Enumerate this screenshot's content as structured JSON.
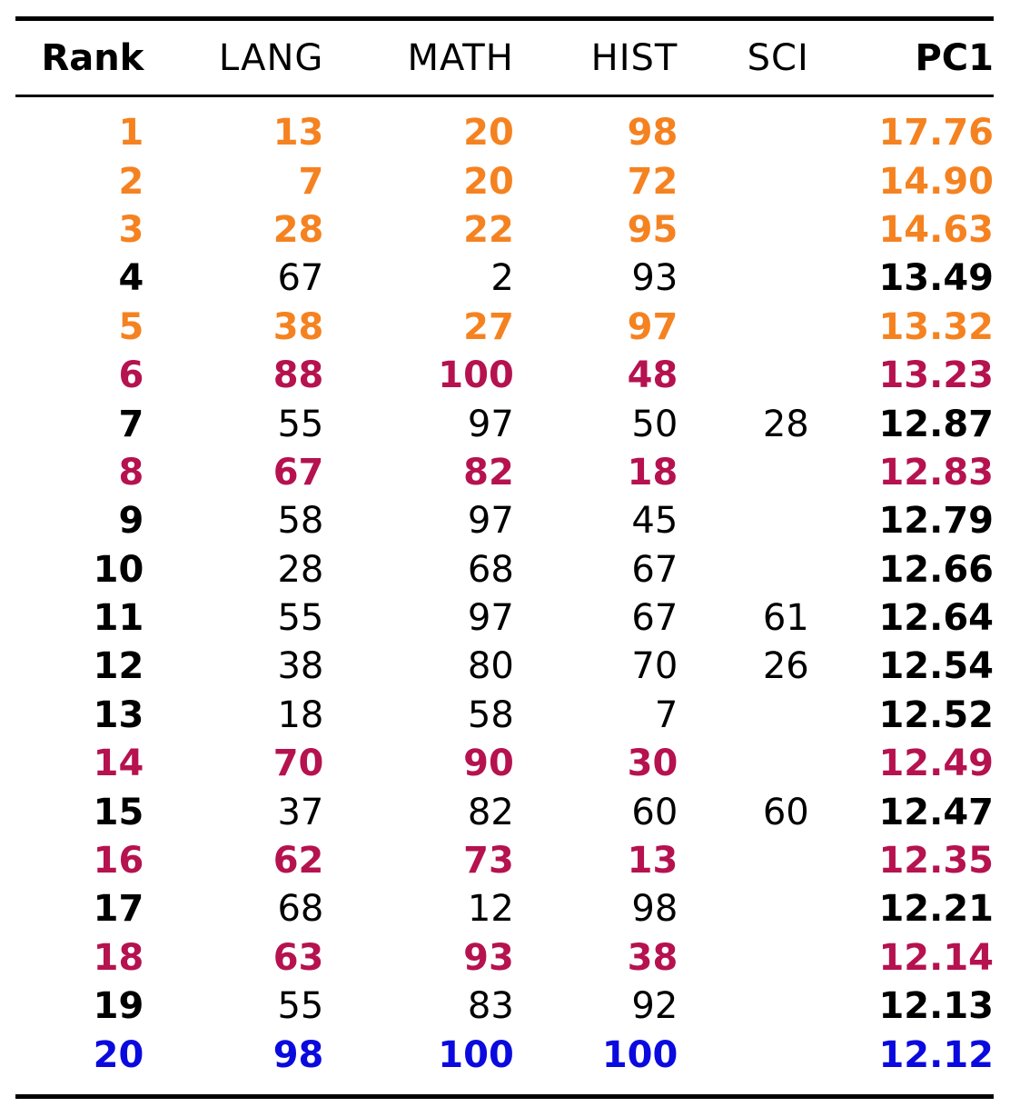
{
  "table": {
    "headers": {
      "rank": "Rank",
      "lang": "LANG",
      "math": "MATH",
      "hist": "HIST",
      "sci": "SCI",
      "pc1": "PC1"
    },
    "rows": [
      {
        "rank": "1",
        "lang": "13",
        "math": "20",
        "hist": "98",
        "sci": "",
        "pc1": "17.76",
        "highlight": "orange"
      },
      {
        "rank": "2",
        "lang": "7",
        "math": "20",
        "hist": "72",
        "sci": "",
        "pc1": "14.90",
        "highlight": "orange"
      },
      {
        "rank": "3",
        "lang": "28",
        "math": "22",
        "hist": "95",
        "sci": "",
        "pc1": "14.63",
        "highlight": "orange"
      },
      {
        "rank": "4",
        "lang": "67",
        "math": "2",
        "hist": "93",
        "sci": "",
        "pc1": "13.49",
        "highlight": "none"
      },
      {
        "rank": "5",
        "lang": "38",
        "math": "27",
        "hist": "97",
        "sci": "",
        "pc1": "13.32",
        "highlight": "orange"
      },
      {
        "rank": "6",
        "lang": "88",
        "math": "100",
        "hist": "48",
        "sci": "",
        "pc1": "13.23",
        "highlight": "red"
      },
      {
        "rank": "7",
        "lang": "55",
        "math": "97",
        "hist": "50",
        "sci": "28",
        "pc1": "12.87",
        "highlight": "none"
      },
      {
        "rank": "8",
        "lang": "67",
        "math": "82",
        "hist": "18",
        "sci": "",
        "pc1": "12.83",
        "highlight": "red"
      },
      {
        "rank": "9",
        "lang": "58",
        "math": "97",
        "hist": "45",
        "sci": "",
        "pc1": "12.79",
        "highlight": "none"
      },
      {
        "rank": "10",
        "lang": "28",
        "math": "68",
        "hist": "67",
        "sci": "",
        "pc1": "12.66",
        "highlight": "none"
      },
      {
        "rank": "11",
        "lang": "55",
        "math": "97",
        "hist": "67",
        "sci": "61",
        "pc1": "12.64",
        "highlight": "none"
      },
      {
        "rank": "12",
        "lang": "38",
        "math": "80",
        "hist": "70",
        "sci": "26",
        "pc1": "12.54",
        "highlight": "none"
      },
      {
        "rank": "13",
        "lang": "18",
        "math": "58",
        "hist": "7",
        "sci": "",
        "pc1": "12.52",
        "highlight": "none"
      },
      {
        "rank": "14",
        "lang": "70",
        "math": "90",
        "hist": "30",
        "sci": "",
        "pc1": "12.49",
        "highlight": "red"
      },
      {
        "rank": "15",
        "lang": "37",
        "math": "82",
        "hist": "60",
        "sci": "60",
        "pc1": "12.47",
        "highlight": "none"
      },
      {
        "rank": "16",
        "lang": "62",
        "math": "73",
        "hist": "13",
        "sci": "",
        "pc1": "12.35",
        "highlight": "red"
      },
      {
        "rank": "17",
        "lang": "68",
        "math": "12",
        "hist": "98",
        "sci": "",
        "pc1": "12.21",
        "highlight": "none"
      },
      {
        "rank": "18",
        "lang": "63",
        "math": "93",
        "hist": "38",
        "sci": "",
        "pc1": "12.14",
        "highlight": "red"
      },
      {
        "rank": "19",
        "lang": "55",
        "math": "83",
        "hist": "92",
        "sci": "",
        "pc1": "12.13",
        "highlight": "none"
      },
      {
        "rank": "20",
        "lang": "98",
        "math": "100",
        "hist": "100",
        "sci": "",
        "pc1": "12.12",
        "highlight": "blue"
      }
    ]
  },
  "colors": {
    "orange": "#f58220",
    "red": "#b5124f",
    "blue": "#0a0adf",
    "default": "#000000"
  }
}
